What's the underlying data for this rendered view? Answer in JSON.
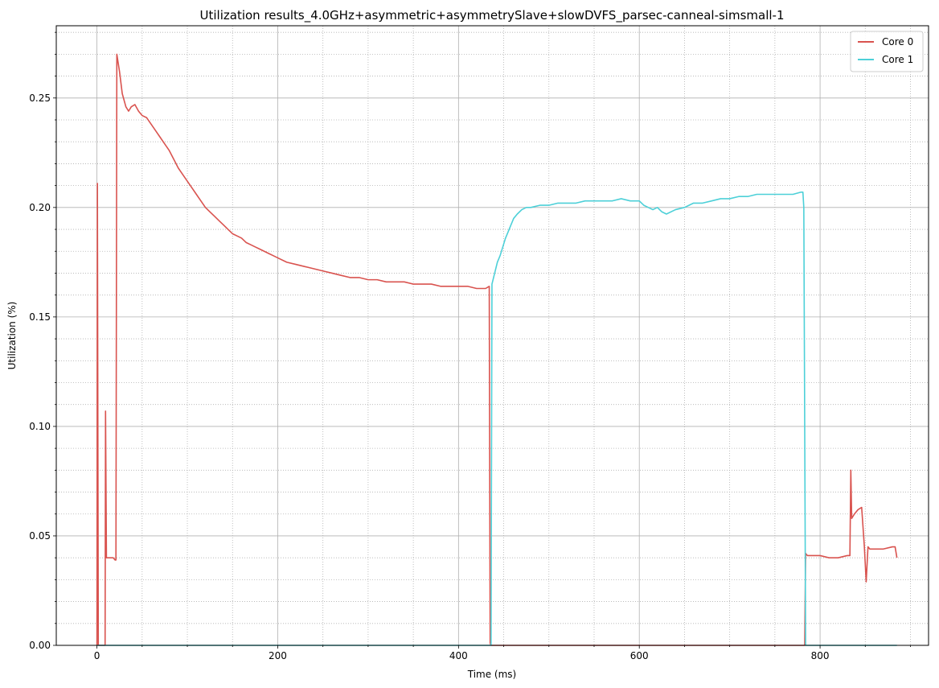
{
  "chart_data": {
    "type": "line",
    "title": "Utilization results_4.0GHz+asymmetric+asymmetrySlave+slowDVFS_parsec-canneal-simsmall-1",
    "xlabel": "Time (ms)",
    "ylabel": "Utilization (%)",
    "xlim": [
      -45,
      920
    ],
    "ylim": [
      0,
      0.283
    ],
    "x_ticks": [
      0,
      200,
      400,
      600,
      800
    ],
    "x_tick_labels": [
      "0",
      "200",
      "400",
      "600",
      "800"
    ],
    "x_minor_step": 50,
    "y_ticks": [
      0,
      0.05,
      0.1,
      0.15,
      0.2,
      0.25
    ],
    "y_tick_labels": [
      "0.00",
      "0.05",
      "0.10",
      "0.15",
      "0.20",
      "0.25"
    ],
    "y_minor_step": 0.01,
    "grid": "major solid, minor dotted",
    "legend_position": "top-right",
    "series": [
      {
        "name": "Core 0",
        "color": "#d9534f",
        "points": [
          [
            0,
            0.0
          ],
          [
            0.5,
            0.211
          ],
          [
            1.5,
            0.0
          ],
          [
            9,
            0.0
          ],
          [
            9.5,
            0.107
          ],
          [
            10.5,
            0.04
          ],
          [
            14,
            0.04
          ],
          [
            18,
            0.04
          ],
          [
            20,
            0.039
          ],
          [
            21,
            0.039
          ],
          [
            22,
            0.27
          ],
          [
            25,
            0.262
          ],
          [
            28,
            0.252
          ],
          [
            32,
            0.246
          ],
          [
            35,
            0.244
          ],
          [
            38,
            0.246
          ],
          [
            42,
            0.247
          ],
          [
            46,
            0.244
          ],
          [
            50,
            0.242
          ],
          [
            55,
            0.241
          ],
          [
            60,
            0.238
          ],
          [
            65,
            0.235
          ],
          [
            70,
            0.232
          ],
          [
            75,
            0.229
          ],
          [
            80,
            0.226
          ],
          [
            85,
            0.222
          ],
          [
            90,
            0.218
          ],
          [
            95,
            0.215
          ],
          [
            100,
            0.212
          ],
          [
            105,
            0.209
          ],
          [
            110,
            0.206
          ],
          [
            115,
            0.203
          ],
          [
            120,
            0.2
          ],
          [
            125,
            0.198
          ],
          [
            130,
            0.196
          ],
          [
            135,
            0.194
          ],
          [
            140,
            0.192
          ],
          [
            145,
            0.19
          ],
          [
            150,
            0.188
          ],
          [
            155,
            0.187
          ],
          [
            160,
            0.186
          ],
          [
            165,
            0.184
          ],
          [
            170,
            0.183
          ],
          [
            175,
            0.182
          ],
          [
            180,
            0.181
          ],
          [
            185,
            0.18
          ],
          [
            190,
            0.179
          ],
          [
            195,
            0.178
          ],
          [
            200,
            0.177
          ],
          [
            210,
            0.175
          ],
          [
            220,
            0.174
          ],
          [
            230,
            0.173
          ],
          [
            240,
            0.172
          ],
          [
            250,
            0.171
          ],
          [
            260,
            0.17
          ],
          [
            270,
            0.169
          ],
          [
            280,
            0.168
          ],
          [
            290,
            0.168
          ],
          [
            300,
            0.167
          ],
          [
            310,
            0.167
          ],
          [
            320,
            0.166
          ],
          [
            330,
            0.166
          ],
          [
            340,
            0.166
          ],
          [
            350,
            0.165
          ],
          [
            360,
            0.165
          ],
          [
            370,
            0.165
          ],
          [
            380,
            0.164
          ],
          [
            390,
            0.164
          ],
          [
            400,
            0.164
          ],
          [
            410,
            0.164
          ],
          [
            420,
            0.163
          ],
          [
            430,
            0.163
          ],
          [
            434,
            0.164
          ],
          [
            435,
            0.001
          ],
          [
            436,
            0.0
          ],
          [
            780,
            0.0
          ],
          [
            783,
            0.0
          ],
          [
            784,
            0.042
          ],
          [
            786,
            0.041
          ],
          [
            790,
            0.041
          ],
          [
            800,
            0.041
          ],
          [
            810,
            0.04
          ],
          [
            820,
            0.04
          ],
          [
            830,
            0.041
          ],
          [
            833,
            0.041
          ],
          [
            834,
            0.08
          ],
          [
            835,
            0.058
          ],
          [
            838,
            0.06
          ],
          [
            842,
            0.062
          ],
          [
            846,
            0.063
          ],
          [
            849,
            0.045
          ],
          [
            851,
            0.029
          ],
          [
            853,
            0.045
          ],
          [
            855,
            0.044
          ],
          [
            860,
            0.044
          ],
          [
            870,
            0.044
          ],
          [
            880,
            0.045
          ],
          [
            883,
            0.045
          ],
          [
            885,
            0.04
          ]
        ]
      },
      {
        "name": "Core 1",
        "color": "#4dd0d8",
        "points": [
          [
            0,
            0.0
          ],
          [
            435,
            0.0
          ],
          [
            436,
            0.0
          ],
          [
            437,
            0.165
          ],
          [
            440,
            0.17
          ],
          [
            443,
            0.175
          ],
          [
            446,
            0.178
          ],
          [
            449,
            0.182
          ],
          [
            452,
            0.186
          ],
          [
            455,
            0.189
          ],
          [
            458,
            0.192
          ],
          [
            461,
            0.195
          ],
          [
            465,
            0.197
          ],
          [
            470,
            0.199
          ],
          [
            475,
            0.2
          ],
          [
            480,
            0.2
          ],
          [
            490,
            0.201
          ],
          [
            500,
            0.201
          ],
          [
            510,
            0.202
          ],
          [
            520,
            0.202
          ],
          [
            530,
            0.202
          ],
          [
            540,
            0.203
          ],
          [
            550,
            0.203
          ],
          [
            560,
            0.203
          ],
          [
            570,
            0.203
          ],
          [
            580,
            0.204
          ],
          [
            590,
            0.203
          ],
          [
            600,
            0.203
          ],
          [
            605,
            0.201
          ],
          [
            610,
            0.2
          ],
          [
            615,
            0.199
          ],
          [
            620,
            0.2
          ],
          [
            625,
            0.198
          ],
          [
            630,
            0.197
          ],
          [
            640,
            0.199
          ],
          [
            650,
            0.2
          ],
          [
            655,
            0.201
          ],
          [
            660,
            0.202
          ],
          [
            670,
            0.202
          ],
          [
            680,
            0.203
          ],
          [
            690,
            0.204
          ],
          [
            700,
            0.204
          ],
          [
            710,
            0.205
          ],
          [
            720,
            0.205
          ],
          [
            730,
            0.206
          ],
          [
            740,
            0.206
          ],
          [
            750,
            0.206
          ],
          [
            760,
            0.206
          ],
          [
            770,
            0.206
          ],
          [
            779,
            0.207
          ],
          [
            781,
            0.207
          ],
          [
            782,
            0.2
          ],
          [
            783,
            0.1
          ],
          [
            784,
            0.0
          ],
          [
            785,
            0.0
          ],
          [
            885,
            0.0
          ]
        ]
      }
    ]
  }
}
